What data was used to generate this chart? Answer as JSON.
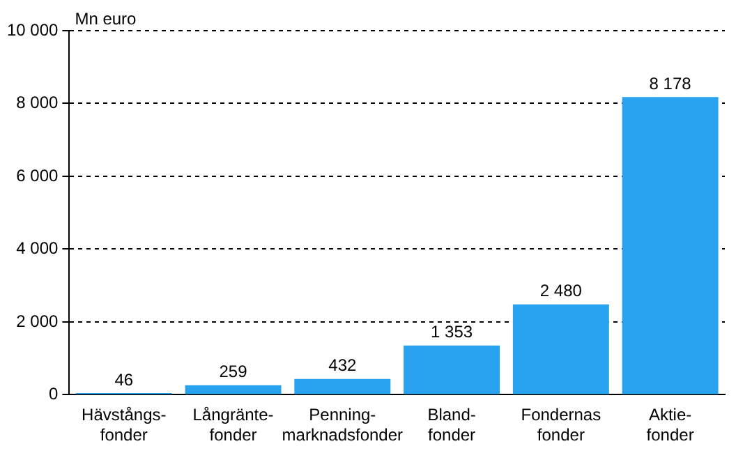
{
  "chart_data": {
    "type": "bar",
    "ylabel": "Mn euro",
    "categories": [
      "Hävstångs-\nfonder",
      "Långränte-\nfonder",
      "Penning-\nmarknadsfonder",
      "Bland-\nfonder",
      "Fondernas\nfonder",
      "Aktie-\nfonder"
    ],
    "values": [
      46,
      259,
      432,
      1353,
      2480,
      8178
    ],
    "value_labels": [
      "46",
      "259",
      "432",
      "1 353",
      "2 480",
      "8 178"
    ],
    "color": "#29a3f0",
    "ylim": [
      0,
      10000
    ],
    "yticks": [
      {
        "value": 0,
        "label": "0"
      },
      {
        "value": 2000,
        "label": "2 000"
      },
      {
        "value": 4000,
        "label": "4 000"
      },
      {
        "value": 6000,
        "label": "6 000"
      },
      {
        "value": 8000,
        "label": "8 000"
      },
      {
        "value": 10000,
        "label": "10 000"
      }
    ],
    "grid": "y",
    "legend": false
  }
}
